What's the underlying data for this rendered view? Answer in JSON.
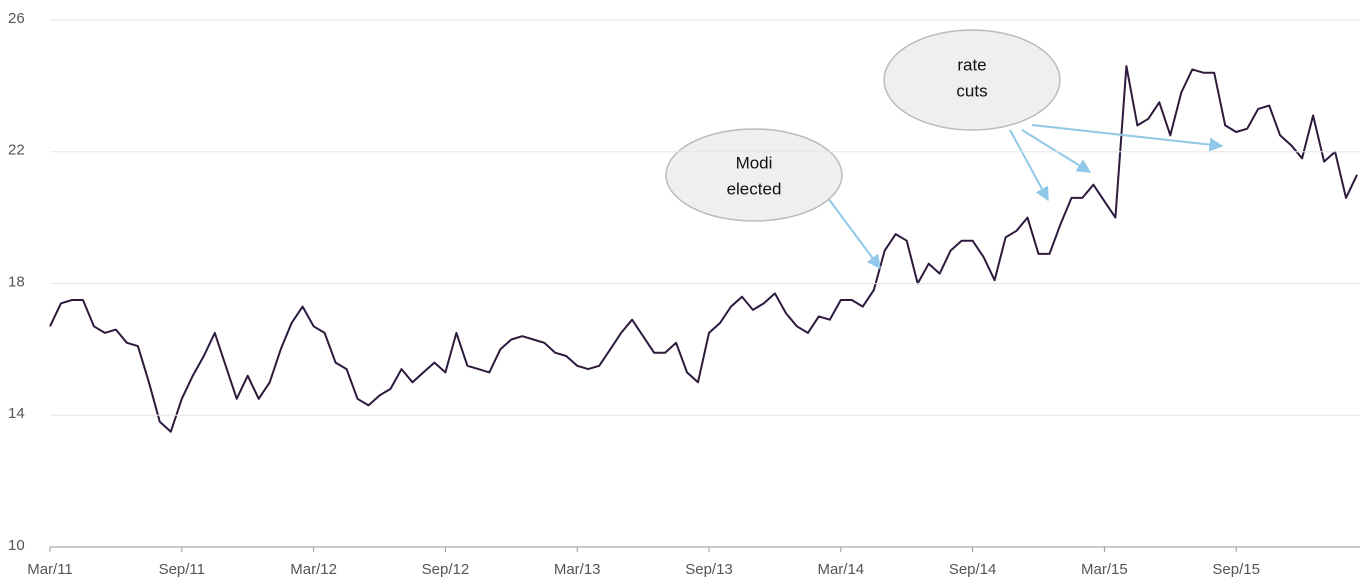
{
  "chart_data": {
    "type": "line",
    "categories": [
      "Mar/11",
      null,
      null,
      null,
      null,
      null,
      null,
      null,
      null,
      null,
      null,
      null,
      "Sep/11",
      null,
      null,
      null,
      null,
      null,
      null,
      null,
      null,
      null,
      null,
      null,
      "Mar/12",
      null,
      null,
      null,
      null,
      null,
      null,
      null,
      null,
      null,
      null,
      null,
      "Sep/12",
      null,
      null,
      null,
      null,
      null,
      null,
      null,
      null,
      null,
      null,
      null,
      "Mar/13",
      null,
      null,
      null,
      null,
      null,
      null,
      null,
      null,
      null,
      null,
      null,
      "Sep/13",
      null,
      null,
      null,
      null,
      null,
      null,
      null,
      null,
      null,
      null,
      null,
      "Mar/14",
      null,
      null,
      null,
      null,
      null,
      null,
      null,
      null,
      null,
      null,
      null,
      "Sep/14",
      null,
      null,
      null,
      null,
      null,
      null,
      null,
      null,
      null,
      null,
      null,
      "Mar/15",
      null,
      null,
      null,
      null,
      null,
      null,
      null,
      null,
      null,
      null,
      null,
      "Sep/15",
      null,
      null,
      null,
      null,
      null,
      null,
      null,
      null,
      null,
      null,
      null
    ],
    "values": [
      16.7,
      17.4,
      17.5,
      17.5,
      16.7,
      16.5,
      16.6,
      16.2,
      16.1,
      15.0,
      13.8,
      13.5,
      14.5,
      15.2,
      15.8,
      16.5,
      15.5,
      14.5,
      15.2,
      14.5,
      15.0,
      16.0,
      16.8,
      17.3,
      16.7,
      16.5,
      15.6,
      15.4,
      14.5,
      14.3,
      14.6,
      14.8,
      15.4,
      15.0,
      15.3,
      15.6,
      15.3,
      16.5,
      15.5,
      15.4,
      15.3,
      16.0,
      16.3,
      16.4,
      16.3,
      16.2,
      15.9,
      15.8,
      15.5,
      15.4,
      15.5,
      16.0,
      16.5,
      16.9,
      16.4,
      15.9,
      15.9,
      16.2,
      15.3,
      15.0,
      16.5,
      16.8,
      17.3,
      17.6,
      17.2,
      17.4,
      17.7,
      17.1,
      16.7,
      16.5,
      17.0,
      16.9,
      17.5,
      17.5,
      17.3,
      17.8,
      19.0,
      19.5,
      19.3,
      18.0,
      18.6,
      18.3,
      19.0,
      19.3,
      19.3,
      18.8,
      18.1,
      19.4,
      19.6,
      20.0,
      18.9,
      18.9,
      19.8,
      20.6,
      20.6,
      21.0,
      20.5,
      20.0,
      24.6,
      22.8,
      23.0,
      23.5,
      22.5,
      23.8,
      24.5,
      24.4,
      24.4,
      22.8,
      22.6,
      22.7,
      23.3,
      23.4,
      22.5,
      22.2,
      21.8,
      23.1,
      21.7,
      22.0,
      20.6,
      21.3
    ],
    "color": "#2d1a3d",
    "ylim": [
      10,
      26
    ],
    "yticks": [
      10,
      14,
      18,
      22,
      26
    ],
    "grid": true,
    "annotations": [
      {
        "lines": [
          "Modi",
          "elected"
        ]
      },
      {
        "lines": [
          "rate",
          "cuts"
        ]
      }
    ]
  }
}
